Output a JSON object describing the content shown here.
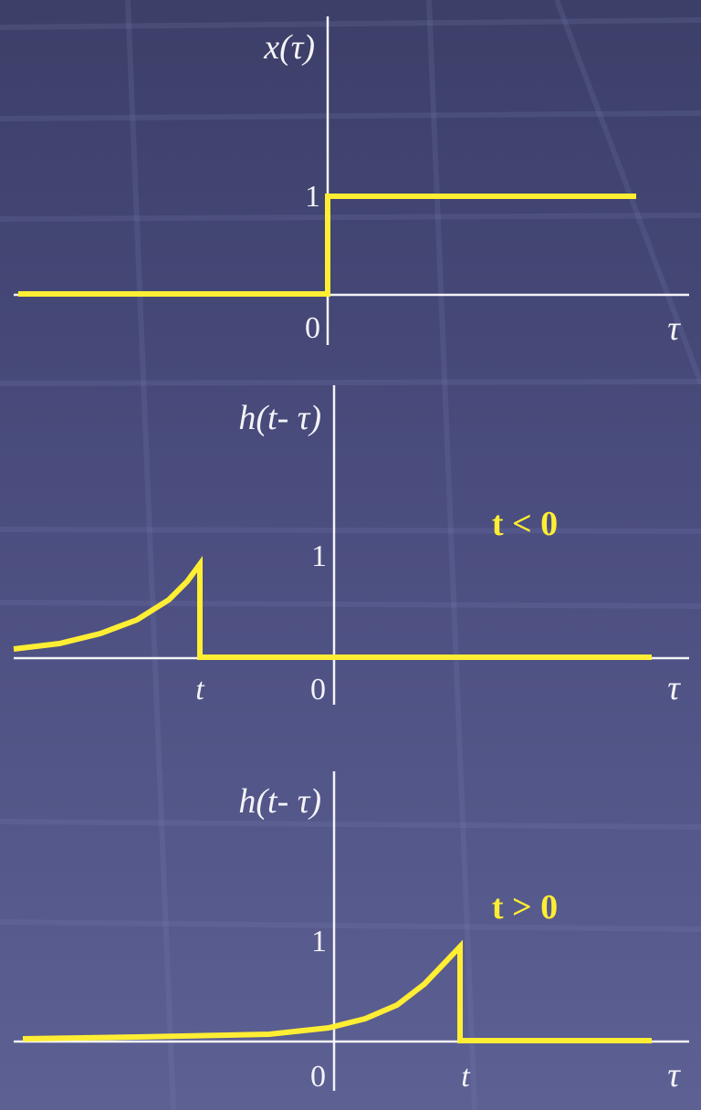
{
  "colors": {
    "background_top": "#3c3f68",
    "background_bottom": "#5d6093",
    "axis": "#f4f4f8",
    "signal": "#ffee33"
  },
  "panels": [
    {
      "y_label": "x(τ)",
      "x_label": "τ",
      "origin_label": "0",
      "one_label": "1",
      "t_label": "",
      "condition": "",
      "signal": "unit-step"
    },
    {
      "y_label": "h(t- τ)",
      "x_label": "τ",
      "origin_label": "0",
      "one_label": "1",
      "t_label": "t",
      "condition": "t < 0",
      "signal": "reversed-exponential",
      "t_value": "negative"
    },
    {
      "y_label": "h(t- τ)",
      "x_label": "τ",
      "origin_label": "0",
      "one_label": "1",
      "t_label": "t",
      "condition": "t > 0",
      "signal": "reversed-exponential",
      "t_value": "positive"
    }
  ]
}
